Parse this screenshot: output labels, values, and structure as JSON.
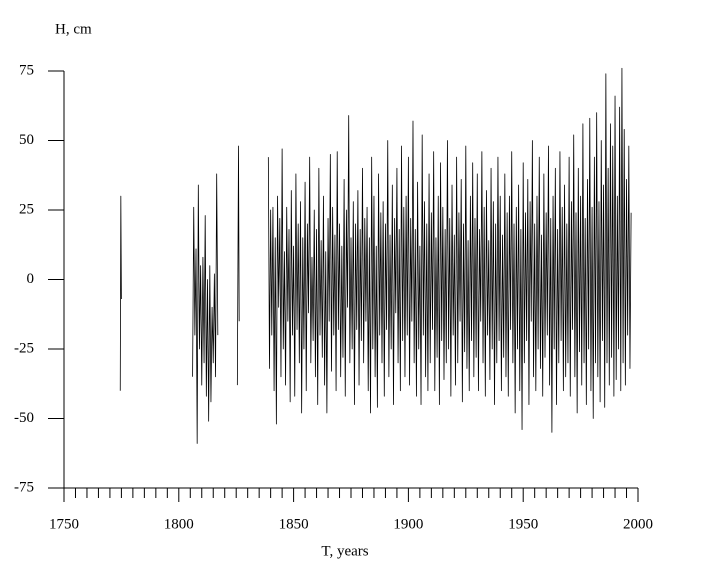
{
  "chart_data": {
    "type": "line",
    "ylabel": "H, cm",
    "xlabel": "T, years",
    "xlim": [
      1750,
      2000
    ],
    "xticks": [
      1750,
      1800,
      1850,
      1900,
      1950,
      2000
    ],
    "xminorticks": [
      1755,
      1760,
      1765,
      1770,
      1775,
      1780,
      1785,
      1790,
      1795,
      1805,
      1810,
      1815,
      1820,
      1825,
      1830,
      1835,
      1840,
      1845,
      1855,
      1860,
      1865,
      1870,
      1875,
      1880,
      1885,
      1890,
      1895,
      1905,
      1910,
      1915,
      1920,
      1925,
      1930,
      1935,
      1940,
      1945,
      1955,
      1960,
      1965,
      1970,
      1975,
      1980,
      1985,
      1990,
      1995
    ],
    "ylim": [
      -75,
      75
    ],
    "yticks": [
      -75,
      -50,
      -25,
      0,
      25,
      50,
      75
    ],
    "grid": false,
    "series": [
      {
        "color": "#000000",
        "x": [
          1774.5,
          1774.75,
          1775,
          1790,
          1806,
          1806.5,
          1807,
          1807.5,
          1808,
          1808.5,
          1809,
          1809.5,
          1810,
          1810.5,
          1811,
          1811.5,
          1812,
          1812.5,
          1813,
          1813.5,
          1814,
          1814.5,
          1815,
          1815.5,
          1816,
          1816.5,
          1817,
          1820,
          1825.5,
          1826,
          1826.3,
          1830,
          1839,
          1839.5,
          1840,
          1840.5,
          1841,
          1841.5,
          1842,
          1842.5,
          1843,
          1843.5,
          1844,
          1844.5,
          1845,
          1845.5,
          1846,
          1846.5,
          1847,
          1847.5,
          1848,
          1848.5,
          1849,
          1849.5,
          1850,
          1850.5,
          1851,
          1851.5,
          1852,
          1852.5,
          1853,
          1853.5,
          1854,
          1854.5,
          1855,
          1855.5,
          1856,
          1856.5,
          1857,
          1857.5,
          1858,
          1858.5,
          1859,
          1859.5,
          1860,
          1860.5,
          1861,
          1861.5,
          1862,
          1862.5,
          1863,
          1863.5,
          1864,
          1864.5,
          1865,
          1865.5,
          1866,
          1866.5,
          1867,
          1867.5,
          1868,
          1868.5,
          1869,
          1869.5,
          1870,
          1870.5,
          1871,
          1871.5,
          1872,
          1872.5,
          1873,
          1873.5,
          1874,
          1874.5,
          1875,
          1875.5,
          1876,
          1876.5,
          1877,
          1877.5,
          1878,
          1878.5,
          1879,
          1879.5,
          1880,
          1880.5,
          1881,
          1881.5,
          1882,
          1882.5,
          1883,
          1883.5,
          1884,
          1884.5,
          1885,
          1885.5,
          1886,
          1886.5,
          1887,
          1887.5,
          1888,
          1888.5,
          1889,
          1889.5,
          1890,
          1890.5,
          1891,
          1891.5,
          1892,
          1892.5,
          1893,
          1893.5,
          1894,
          1894.5,
          1895,
          1895.5,
          1896,
          1896.5,
          1897,
          1897.5,
          1898,
          1898.5,
          1899,
          1899.5,
          1900,
          1900.5,
          1901,
          1901.5,
          1902,
          1902.5,
          1903,
          1903.5,
          1904,
          1904.5,
          1905,
          1905.5,
          1906,
          1906.5,
          1907,
          1907.5,
          1908,
          1908.5,
          1909,
          1909.5,
          1910,
          1910.5,
          1911,
          1911.5,
          1912,
          1912.5,
          1913,
          1913.5,
          1914,
          1914.5,
          1915,
          1915.5,
          1916,
          1916.5,
          1917,
          1917.5,
          1918,
          1918.5,
          1919,
          1919.5,
          1920,
          1920.5,
          1921,
          1921.5,
          1922,
          1922.5,
          1923,
          1923.5,
          1924,
          1924.5,
          1925,
          1925.5,
          1926,
          1926.5,
          1927,
          1927.5,
          1928,
          1928.5,
          1929,
          1929.5,
          1930,
          1930.5,
          1931,
          1931.5,
          1932,
          1932.5,
          1933,
          1933.5,
          1934,
          1934.5,
          1935,
          1935.5,
          1936,
          1936.5,
          1937,
          1937.5,
          1938,
          1938.5,
          1939,
          1939.5,
          1940,
          1940.5,
          1941,
          1941.5,
          1942,
          1942.5,
          1943,
          1943.5,
          1944,
          1944.5,
          1945,
          1945.5,
          1946,
          1946.5,
          1947,
          1947.5,
          1948,
          1948.5,
          1949,
          1949.5,
          1950,
          1950.5,
          1951,
          1951.5,
          1952,
          1952.5,
          1953,
          1953.5,
          1954,
          1954.5,
          1955,
          1955.5,
          1956,
          1956.5,
          1957,
          1957.5,
          1958,
          1958.5,
          1959,
          1959.5,
          1960,
          1960.5,
          1961,
          1961.5,
          1962,
          1962.5,
          1963,
          1963.5,
          1964,
          1964.5,
          1965,
          1965.5,
          1966,
          1966.5,
          1967,
          1967.5,
          1968,
          1968.5,
          1969,
          1969.5,
          1970,
          1970.5,
          1971,
          1971.5,
          1972,
          1972.5,
          1973,
          1973.5,
          1974,
          1974.5,
          1975,
          1975.5,
          1976,
          1976.5,
          1977,
          1977.5,
          1978,
          1978.5,
          1979,
          1979.5,
          1980,
          1980.5,
          1981,
          1981.5,
          1982,
          1982.5,
          1983,
          1983.5,
          1984,
          1984.5,
          1985,
          1985.5,
          1986,
          1986.5,
          1987,
          1987.5,
          1988,
          1988.5,
          1989,
          1989.5,
          1990,
          1990.5,
          1991,
          1991.5,
          1992,
          1992.5,
          1993,
          1993.5,
          1994,
          1994.5,
          1995,
          1995.5,
          1996,
          1996.5,
          1997
        ],
        "values": [
          -40,
          30,
          -7,
          null,
          -35,
          26,
          -20,
          11,
          -59,
          34,
          -25,
          5,
          -38,
          8,
          -30,
          23,
          -42,
          0,
          -51,
          5,
          -44,
          -10,
          -30,
          2,
          -35,
          38,
          -20,
          null,
          -38,
          48,
          -15,
          null,
          44,
          -32,
          25,
          -20,
          26,
          -40,
          15,
          -52,
          30,
          -10,
          22,
          -35,
          47,
          -25,
          10,
          -38,
          26,
          -15,
          18,
          -44,
          32,
          -20,
          12,
          -42,
          38,
          -18,
          20,
          -30,
          28,
          -48,
          15,
          -25,
          35,
          -40,
          20,
          -12,
          44,
          -30,
          8,
          -22,
          25,
          -35,
          18,
          -45,
          40,
          -20,
          14,
          -28,
          30,
          -38,
          10,
          -48,
          22,
          -15,
          45,
          -33,
          26,
          -20,
          16,
          -40,
          46,
          -18,
          20,
          -35,
          12,
          -28,
          36,
          -42,
          25,
          -10,
          59,
          -30,
          15,
          -25,
          28,
          -45,
          20,
          -18,
          32,
          -38,
          18,
          -22,
          40,
          -30,
          22,
          -15,
          26,
          -40,
          15,
          -48,
          44,
          -25,
          30,
          -35,
          12,
          -46,
          38,
          -20,
          24,
          -30,
          28,
          -42,
          20,
          -18,
          50,
          -35,
          16,
          -25,
          34,
          -45,
          22,
          -12,
          40,
          -30,
          18,
          -40,
          48,
          -22,
          26,
          -35,
          30,
          -20,
          44,
          -38,
          22,
          -15,
          57,
          -30,
          18,
          -42,
          35,
          -25,
          12,
          -45,
          52,
          -20,
          28,
          -35,
          20,
          -40,
          38,
          -30,
          24,
          -18,
          46,
          -40,
          15,
          -28,
          30,
          -45,
          42,
          -22,
          26,
          -36,
          18,
          -30,
          50,
          -25,
          22,
          -42,
          34,
          -20,
          16,
          -38,
          44,
          -30,
          24,
          -15,
          36,
          -44,
          20,
          -26,
          48,
          -32,
          14,
          -40,
          30,
          -22,
          42,
          -35,
          22,
          -28,
          38,
          -40,
          18,
          -15,
          46,
          -30,
          26,
          -42,
          32,
          -20,
          14,
          -36,
          40,
          -25,
          28,
          -45,
          20,
          -30,
          44,
          -22,
          30,
          -40,
          16,
          -28,
          38,
          -35,
          24,
          -42,
          30,
          -18,
          46,
          -30,
          20,
          -48,
          26,
          -25,
          34,
          -40,
          18,
          -54,
          42,
          -30,
          24,
          -22,
          36,
          -45,
          28,
          -15,
          50,
          -35,
          20,
          -40,
          30,
          -25,
          44,
          -32,
          16,
          -42,
          38,
          -28,
          24,
          -20,
          48,
          -38,
          22,
          -55,
          30,
          -25,
          40,
          -45,
          18,
          -30,
          46,
          -22,
          26,
          -40,
          34,
          -35,
          20,
          -30,
          44,
          -42,
          28,
          -18,
          52,
          -35,
          24,
          -48,
          40,
          -26,
          30,
          -38,
          56,
          -30,
          22,
          -45,
          36,
          -25,
          58,
          -40,
          26,
          -50,
          44,
          -30,
          60,
          -35,
          28,
          -44,
          50,
          -22,
          34,
          -46,
          74,
          -30,
          40,
          -38,
          56,
          -28,
          48,
          -42,
          66,
          -36,
          30,
          -25,
          62,
          -40,
          76,
          -30,
          54,
          -38,
          36,
          -20,
          48,
          -32,
          24
        ]
      }
    ]
  }
}
